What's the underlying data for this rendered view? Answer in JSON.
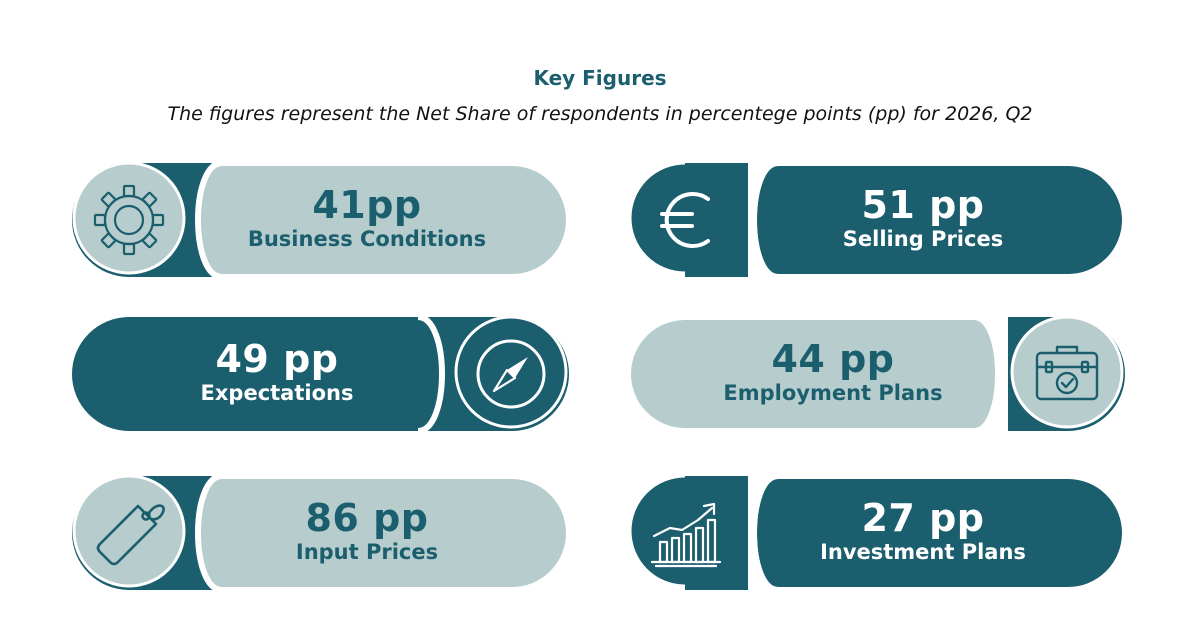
{
  "header": {
    "title": "Key Figures",
    "subtitle": "The figures represent the Net Share of respondents in percentege points (pp) for 2026, Q2"
  },
  "colors": {
    "light_fill": "#b7cdcd",
    "dark_fill": "#1b5e6e",
    "accent_text": "#1b5e6e"
  },
  "cards": [
    {
      "value": "41pp",
      "label": "Business Conditions",
      "icon": "gear-icon"
    },
    {
      "value": "51 pp",
      "label": "Selling Prices",
      "icon": "euro-icon"
    },
    {
      "value": "49 pp",
      "label": "Expectations",
      "icon": "compass-icon"
    },
    {
      "value": "44 pp",
      "label": "Employment Plans",
      "icon": "briefcase-check-icon"
    },
    {
      "value": "86 pp",
      "label": "Input Prices",
      "icon": "price-tag-icon"
    },
    {
      "value": "27 pp",
      "label": "Investment Plans",
      "icon": "growth-chart-icon"
    }
  ]
}
